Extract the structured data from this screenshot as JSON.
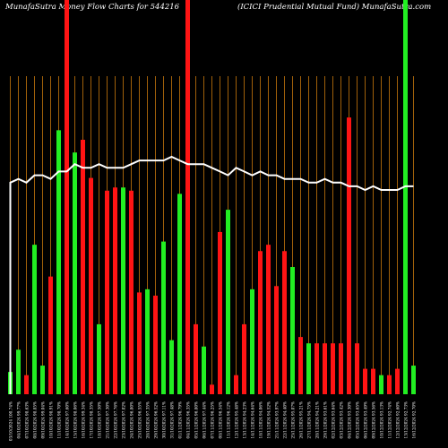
{
  "header": {
    "left": "MunafaSutra  Money Flow  Charts for 544216",
    "right": "(ICICI Prudential Mutual Fund) MunafaSutra.com"
  },
  "colors": {
    "up": "#22ee22",
    "down": "#ff1414",
    "grid": "#a0600a",
    "line": "#ffffff",
    "bg": "#000000"
  },
  "chart_data": {
    "type": "bar",
    "title": "MunafaSutra  Money Flow  Charts for 544216",
    "subtitle": "(ICICI Prudential Mutual Fund) MunafaSutra.com",
    "ylim": [
      0,
      100
    ],
    "grid": "vertical",
    "categories": [
      "03/10/2024 100.74%",
      "04/10/2024 99.77%",
      "07/10/2024 98.63%",
      "08/10/2024 98.85%",
      "09/10/2024 99.04%",
      "10/10/2024 98.91%",
      "11/10/2024 98.70%",
      "14/10/2024 97.60%",
      "15/10/2024 98.06%",
      "16/10/2024 99.34%",
      "17/10/2024 98.35%",
      "18/10/2024 97.50%",
      "21/10/2024 97.30%",
      "22/10/2024 97.76%",
      "23/10/2024 97.02%",
      "24/10/2024 96.80%",
      "25/10/2024 96.55%",
      "28/10/2024 97.35%",
      "29/10/2024 96.52%",
      "30/10/2024 97.11%",
      "31/10/2024 97.48%",
      "01/11/2024 96.79%",
      "04/11/2024 96.35%",
      "05/11/2024 96.80%",
      "06/11/2024 97.44%",
      "07/11/2024 96.25%",
      "08/11/2024 96.54%",
      "11/11/2024 96.12%",
      "12/11/2024 95.48%",
      "13/11/2024 94.23%",
      "14/11/2024 94.64%",
      "18/11/2024 94.06%",
      "19/11/2024 94.52%",
      "21/11/2024 93.97%",
      "22/11/2024 94.40%",
      "25/11/2024 95.07%",
      "26/11/2024 95.21%",
      "27/11/2024 94.75%",
      "28/11/2024 94.21%",
      "29/11/2024 93.61%",
      "02/12/2024 93.64%",
      "03/12/2024 93.42%",
      "04/12/2024 93.30%",
      "05/12/2024 93.65%",
      "06/12/2024 93.49%",
      "09/12/2024 93.56%",
      "10/12/2024 93.13%",
      "11/12/2024 92.74%",
      "12/12/2024 92.60%",
      "13/12/2024 92.73%",
      "16/12/2024 92.70%"
    ],
    "series": [
      {
        "colors": [
          "green",
          "green",
          "red",
          "green",
          "green",
          "red",
          "green",
          "red",
          "green",
          "red",
          "red",
          "green",
          "red",
          "red",
          "green",
          "red",
          "red",
          "green",
          "red",
          "green",
          "green",
          "green",
          "red",
          "red",
          "green",
          "red",
          "red",
          "green",
          "red",
          "red",
          "green",
          "red",
          "red",
          "red",
          "red",
          "green",
          "red",
          "green",
          "red",
          "red",
          "red",
          "red",
          "red",
          "red",
          "red",
          "red",
          "green",
          "red",
          "red",
          "green",
          "green"
        ],
        "values": [
          7,
          14,
          6,
          47,
          9,
          37,
          83,
          100,
          76,
          80,
          68,
          22,
          64,
          65,
          65,
          64,
          32,
          33,
          31,
          48,
          17,
          63,
          100,
          22,
          15,
          3,
          51,
          58,
          6,
          22,
          33,
          45,
          47,
          34,
          45,
          40,
          18,
          16,
          16,
          16,
          16,
          16,
          87,
          16,
          8,
          8,
          6,
          6,
          8,
          100,
          9
        ]
      }
    ],
    "line_values": [
      68,
      69,
      68,
      70,
      70,
      69,
      71,
      71,
      73,
      72,
      72,
      73,
      72,
      72,
      72,
      73,
      74,
      74,
      74,
      74,
      75,
      74,
      73,
      73,
      73,
      72,
      71,
      70,
      72,
      71,
      70,
      71,
      70,
      70,
      69,
      69,
      69,
      68,
      68,
      69,
      68,
      68,
      67,
      67,
      66,
      67,
      66,
      66,
      66,
      67,
      67
    ]
  }
}
